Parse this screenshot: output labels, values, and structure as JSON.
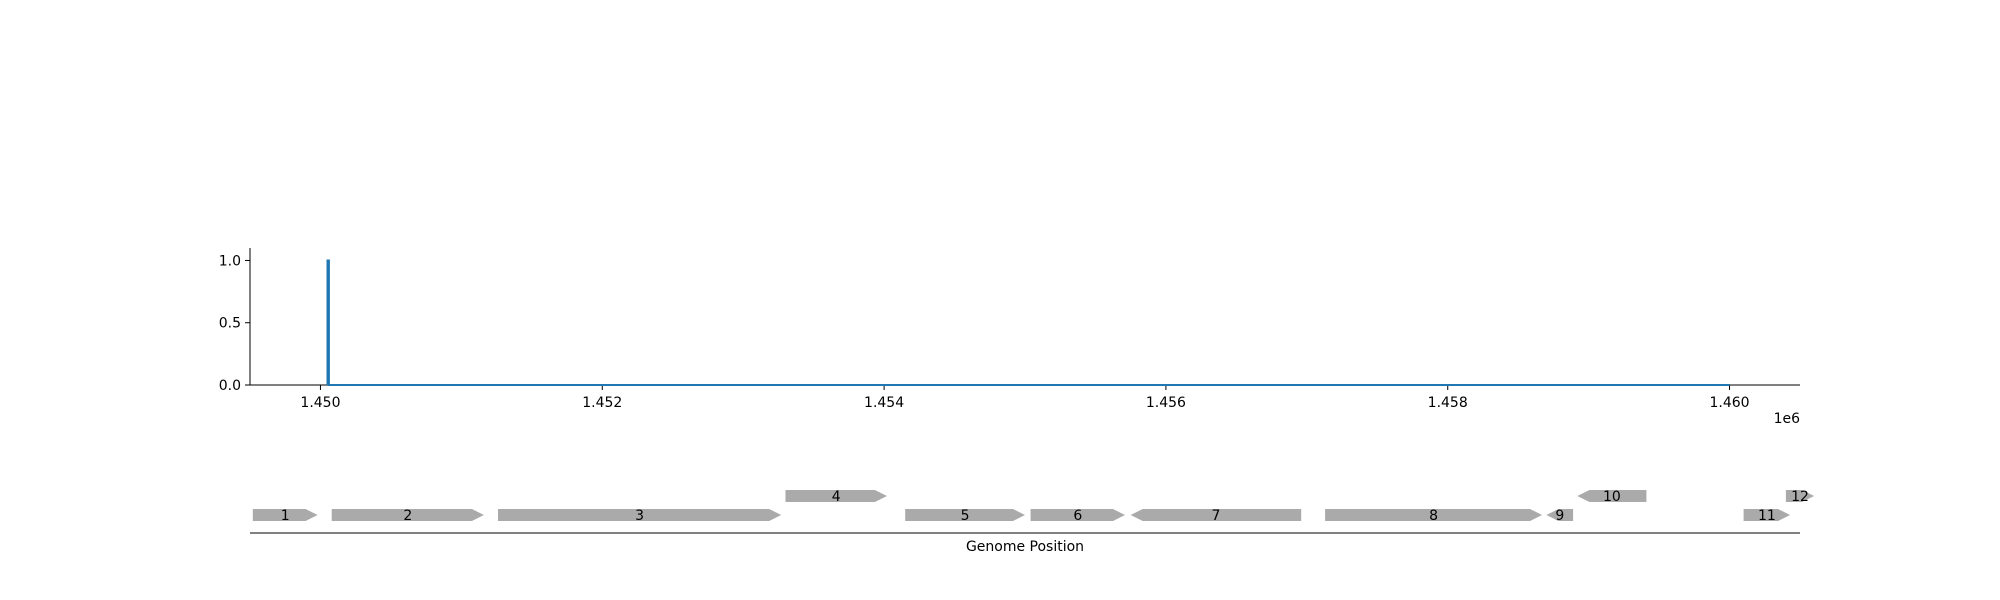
{
  "chart_data": [
    {
      "type": "line",
      "x_offset_label": "1e6",
      "xlim": [
        1.4495,
        1.4605
      ],
      "ylim": [
        0,
        1.1
      ],
      "x_ticks": [
        {
          "value": 1.45,
          "label": "1.450"
        },
        {
          "value": 1.452,
          "label": "1.452"
        },
        {
          "value": 1.454,
          "label": "1.454"
        },
        {
          "value": 1.456,
          "label": "1.456"
        },
        {
          "value": 1.458,
          "label": "1.458"
        },
        {
          "value": 1.46,
          "label": "1.460"
        }
      ],
      "y_ticks": [
        {
          "value": 0.0,
          "label": "0.0"
        },
        {
          "value": 0.5,
          "label": "0.5"
        },
        {
          "value": 1.0,
          "label": "1.0"
        }
      ],
      "series": [
        {
          "color": "#1f77b4",
          "points": [
            [
              1.45005,
              0
            ],
            [
              1.45005,
              1.0
            ],
            [
              1.45006,
              1.0
            ],
            [
              1.45006,
              0
            ],
            [
              1.46,
              0
            ]
          ]
        }
      ],
      "grid": false
    },
    {
      "type": "gene_track",
      "xlabel": "Genome Position",
      "xlim": [
        1.4495,
        1.4605
      ],
      "gene_color": "#aaaaaa",
      "genes": [
        {
          "label": "1",
          "start": 1.44952,
          "end": 1.44998,
          "strand": "+",
          "row": 0
        },
        {
          "label": "2",
          "start": 1.45008,
          "end": 1.45116,
          "strand": "+",
          "row": 0
        },
        {
          "label": "3",
          "start": 1.45126,
          "end": 1.45327,
          "strand": "+",
          "row": 0
        },
        {
          "label": "4",
          "start": 1.4533,
          "end": 1.45402,
          "strand": "+",
          "row": 1
        },
        {
          "label": "5",
          "start": 1.45415,
          "end": 1.455,
          "strand": "+",
          "row": 0
        },
        {
          "label": "6",
          "start": 1.45504,
          "end": 1.45571,
          "strand": "+",
          "row": 0
        },
        {
          "label": "7",
          "start": 1.45575,
          "end": 1.45696,
          "strand": "-",
          "row": 0
        },
        {
          "label": "8",
          "start": 1.45713,
          "end": 1.45867,
          "strand": "+",
          "row": 0
        },
        {
          "label": "9",
          "start": 1.4587,
          "end": 1.45889,
          "strand": "-",
          "row": 0
        },
        {
          "label": "10",
          "start": 1.45892,
          "end": 1.45941,
          "strand": "-",
          "row": 1
        },
        {
          "label": "11",
          "start": 1.4601,
          "end": 1.46043,
          "strand": "+",
          "row": 0
        },
        {
          "label": "12",
          "start": 1.4604,
          "end": 1.4606,
          "strand": "+",
          "row": 1
        }
      ]
    }
  ]
}
